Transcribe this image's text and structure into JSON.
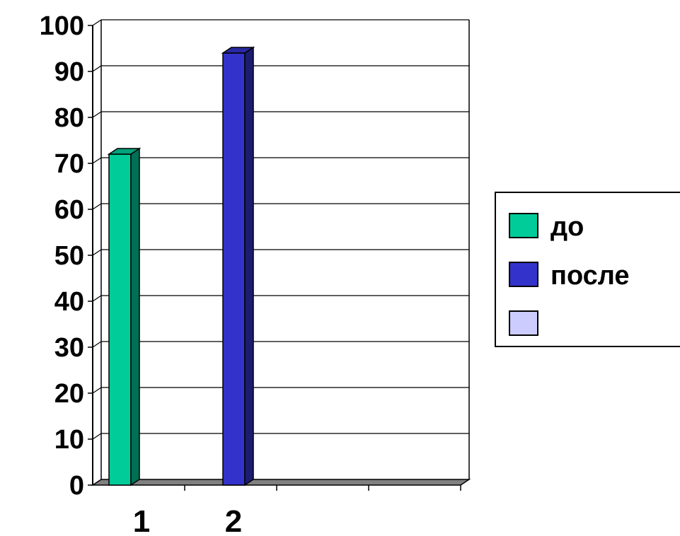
{
  "chart_data": {
    "type": "bar",
    "categories": [
      "1",
      "2",
      "",
      ""
    ],
    "series": [
      {
        "name": "до",
        "color": "#00CC99",
        "values": [
          72,
          null,
          null,
          null
        ]
      },
      {
        "name": "после",
        "color": "#3333CC",
        "values": [
          null,
          94,
          null,
          null
        ]
      },
      {
        "name": "",
        "color": "#CCCCFF",
        "values": [
          null,
          null,
          null,
          null
        ]
      }
    ],
    "ylim": [
      0,
      100
    ],
    "yticks": [
      "0",
      "10",
      "20",
      "30",
      "40",
      "50",
      "60",
      "70",
      "80",
      "90",
      "100"
    ],
    "grid": true,
    "three_d": true,
    "legend_position": "right"
  }
}
